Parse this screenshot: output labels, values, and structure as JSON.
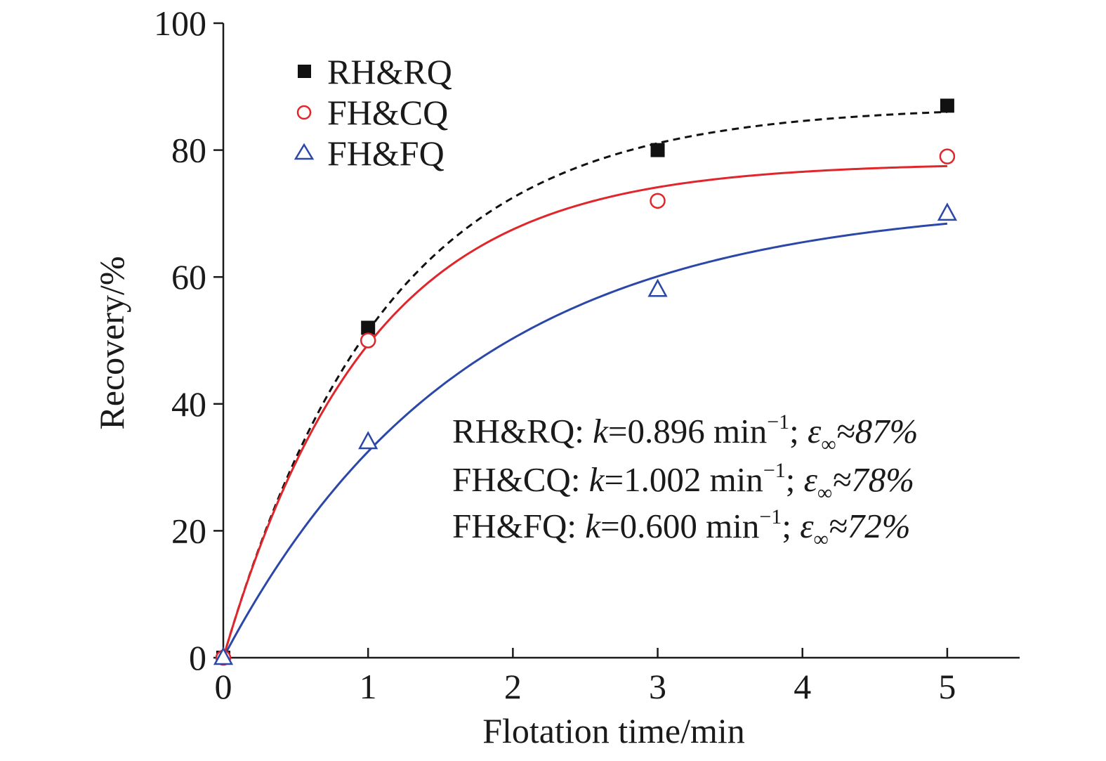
{
  "chart_data": {
    "type": "scatter",
    "xlabel": "Flotation time/min",
    "ylabel": "Recovery/%",
    "xlim": [
      0,
      5.5
    ],
    "ylim": [
      0,
      100
    ],
    "xticks": [
      "0",
      "1",
      "2",
      "3",
      "4",
      "5"
    ],
    "yticks": [
      "0",
      "20",
      "40",
      "60",
      "80",
      "100"
    ],
    "grid": false,
    "legend_position": "top-left",
    "series": [
      {
        "name": "RH&RQ",
        "marker": "filled-square",
        "color": "#111111",
        "line_style": "dashed",
        "x": [
          0,
          1,
          3,
          5
        ],
        "y": [
          0,
          52,
          80,
          87
        ],
        "fit": {
          "k": 0.896,
          "eps_inf": 87
        }
      },
      {
        "name": "FH&CQ",
        "marker": "open-circle",
        "color": "#e0262b",
        "line_style": "solid",
        "x": [
          0,
          1,
          3,
          5
        ],
        "y": [
          0,
          50,
          72,
          79
        ],
        "fit": {
          "k": 1.002,
          "eps_inf": 78
        }
      },
      {
        "name": "FH&FQ",
        "marker": "open-triangle",
        "color": "#2b48a8",
        "line_style": "solid",
        "x": [
          0,
          1,
          3,
          5
        ],
        "y": [
          0,
          34,
          58,
          70
        ],
        "fit": {
          "k": 0.6,
          "eps_inf": 72
        }
      }
    ],
    "annotations": [
      {
        "series": "RH&RQ: ",
        "k_symbol": "k",
        "k_value": "=0.896 min",
        "exponent": "−1",
        "sep": "; ",
        "eps": "ε",
        "inf": "∞",
        "value": "≈87%"
      },
      {
        "series": "FH&CQ: ",
        "k_symbol": "k",
        "k_value": "=1.002 min",
        "exponent": "−1",
        "sep": "; ",
        "eps": "ε",
        "inf": "∞",
        "value": "≈78%"
      },
      {
        "series": "FH&FQ: ",
        "k_symbol": "k",
        "k_value": "=0.600 min",
        "exponent": "−1",
        "sep": "; ",
        "eps": "ε",
        "inf": "∞",
        "value": "≈72%"
      }
    ]
  }
}
